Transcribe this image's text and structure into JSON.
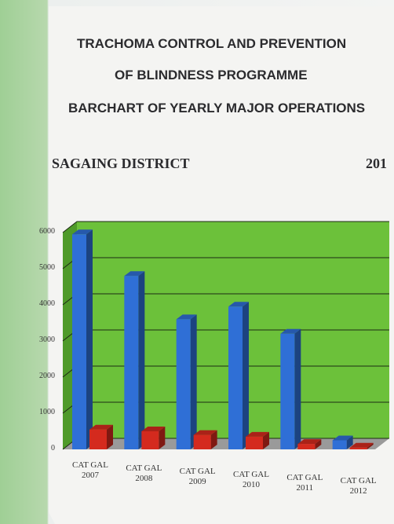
{
  "chart_data": {
    "type": "bar3d",
    "title": "TRACHOMA CONTROL AND PREVENTION",
    "title_line_2": "OF BLINDNESS PROGRAMME",
    "subtitle": "BARCHART OF YEARLY MAJOR OPERATIONS",
    "district": "SAGAING DISTRICT",
    "year": "201",
    "categories": [
      "CAT GAL 2007",
      "CAT GAL 2008",
      "CAT GAL 2009",
      "CAT GAL 2010",
      "CAT GAL 2011",
      "CAT GAL 2012"
    ],
    "series": [
      {
        "color": "#2f6fd6",
        "values": [
          5950,
          4800,
          3600,
          3950,
          3200,
          250
        ]
      },
      {
        "color": "#d42a1e",
        "values": [
          550,
          500,
          400,
          350,
          150,
          50
        ]
      }
    ],
    "ylim": [
      0,
      6000
    ],
    "yticks": [
      0,
      1000,
      2000,
      3000,
      4000,
      5000,
      6000
    ],
    "grid": true,
    "wall_color": "#6cc13a"
  }
}
